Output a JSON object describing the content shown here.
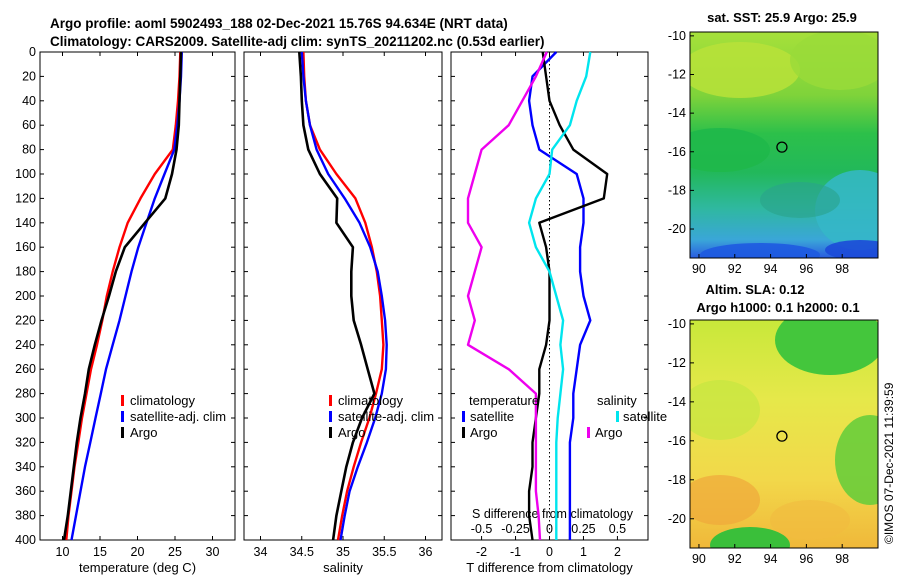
{
  "title": {
    "line1": "Argo profile: aoml 5902493_188 02-Dec-2021 15.76S 94.634E (NRT data)",
    "line2": "Climatology: CARS2009. Satellite-adj clim: synTS_20211202.nc (0.53d earlier)"
  },
  "colors": {
    "climatology": "#ff0000",
    "satellite": "#0000ff",
    "argo": "#000000",
    "salinity_diff": "#00e5ee",
    "salinity_argo_diff": "#ee00ee"
  },
  "depth_ticks": [
    0,
    20,
    40,
    60,
    80,
    100,
    120,
    140,
    160,
    180,
    200,
    220,
    240,
    260,
    280,
    300,
    320,
    340,
    360,
    380,
    400
  ],
  "chart_data": [
    {
      "type": "line",
      "panel": "temperature",
      "xlabel": "temperature (deg C)",
      "ylabel": "depth",
      "xlim": [
        7,
        33
      ],
      "ylim": [
        400,
        0
      ],
      "xticks": [
        10,
        15,
        20,
        25,
        30
      ],
      "legend": [
        "climatology",
        "satellite-adj. clim",
        "Argo"
      ],
      "depth": [
        0,
        20,
        40,
        60,
        80,
        100,
        120,
        140,
        160,
        180,
        200,
        220,
        240,
        260,
        280,
        300,
        320,
        340,
        360,
        380,
        400
      ],
      "series": [
        {
          "name": "climatology",
          "values": [
            25.7,
            25.6,
            25.4,
            25.1,
            24.7,
            22.3,
            20.4,
            18.7,
            17.6,
            16.7,
            15.9,
            15.3,
            14.6,
            13.8,
            13.2,
            12.6,
            12.1,
            11.6,
            11.2,
            10.8,
            10.5
          ]
        },
        {
          "name": "satellite-adj. clim",
          "values": [
            25.9,
            25.8,
            25.6,
            25.3,
            24.9,
            23.6,
            22.3,
            21.2,
            20.1,
            19.2,
            18.4,
            17.6,
            16.7,
            15.8,
            15.1,
            14.4,
            13.7,
            13.0,
            12.4,
            11.8,
            11.2
          ]
        },
        {
          "name": "Argo",
          "values": [
            25.8,
            25.7,
            25.6,
            25.5,
            25.2,
            24.6,
            23.7,
            21.0,
            18.3,
            17.1,
            16.2,
            15.2,
            14.3,
            13.5,
            13.0,
            12.4,
            11.9,
            11.5,
            11.1,
            10.7,
            10.2
          ]
        }
      ]
    },
    {
      "type": "line",
      "panel": "salinity",
      "xlabel": "salinity",
      "ylabel": "depth",
      "xlim": [
        33.8,
        36.2
      ],
      "ylim": [
        400,
        0
      ],
      "xticks": [
        34,
        34.5,
        35,
        35.5,
        36
      ],
      "xtick_labels": [
        "34",
        "34.5",
        "35",
        "35.5",
        "36"
      ],
      "legend": [
        "climatology",
        "satellite-adj. clim",
        "Argo"
      ],
      "depth": [
        0,
        20,
        40,
        60,
        80,
        100,
        120,
        140,
        160,
        180,
        200,
        220,
        240,
        260,
        280,
        300,
        320,
        340,
        360,
        380,
        400
      ],
      "series": [
        {
          "name": "climatology",
          "values": [
            34.52,
            34.53,
            34.55,
            34.6,
            34.72,
            34.92,
            35.15,
            35.27,
            35.35,
            35.41,
            35.45,
            35.47,
            35.49,
            35.47,
            35.4,
            35.32,
            35.22,
            35.13,
            35.05,
            34.99,
            34.94
          ]
        },
        {
          "name": "satellite-adj. clim",
          "values": [
            34.5,
            34.52,
            34.55,
            34.6,
            34.68,
            34.82,
            35.02,
            35.2,
            35.33,
            35.42,
            35.47,
            35.51,
            35.53,
            35.52,
            35.47,
            35.39,
            35.29,
            35.18,
            35.08,
            35.02,
            34.97
          ]
        },
        {
          "name": "Argo",
          "values": [
            34.47,
            34.49,
            34.5,
            34.52,
            34.58,
            34.72,
            34.93,
            34.92,
            35.12,
            35.1,
            35.1,
            35.13,
            35.22,
            35.3,
            35.38,
            35.23,
            35.12,
            35.04,
            34.98,
            34.92,
            34.88
          ]
        }
      ]
    },
    {
      "type": "line",
      "panel": "differences",
      "xlabel": "T difference from climatology",
      "xlabel_top": "S difference from climatology",
      "ylabel": "depth",
      "xlim": [
        -2.9,
        2.9
      ],
      "ylim": [
        400,
        0
      ],
      "xticks": [
        -2,
        -1,
        0,
        1,
        2
      ],
      "xtick_labels": [
        "-2",
        "-1",
        "0",
        "1",
        "2"
      ],
      "s_ticks": [
        -0.5,
        -0.25,
        0,
        0.25,
        0.5
      ],
      "s_tick_labels": [
        "-0.5",
        "-0.25",
        "0",
        "0.25",
        "0.5"
      ],
      "s_range": [
        -0.725,
        0.725
      ],
      "legend": {
        "temperature_title": "temperature",
        "salinity_title": "salinity",
        "t_sat": "satellite",
        "t_argo": "Argo",
        "s_sat": "satellite",
        "s_argo": "Argo"
      },
      "depth": [
        0,
        20,
        40,
        60,
        80,
        100,
        120,
        140,
        160,
        180,
        200,
        220,
        240,
        260,
        280,
        300,
        320,
        340,
        360,
        380,
        400
      ],
      "series": [
        {
          "name": "temperature satellite",
          "values": [
            0.2,
            -0.5,
            -0.6,
            -0.5,
            -0.3,
            0.8,
            1.0,
            1.0,
            0.9,
            0.9,
            1.0,
            1.2,
            0.9,
            0.8,
            0.7,
            0.7,
            0.6,
            0.6,
            0.6,
            0.6,
            0.6
          ]
        },
        {
          "name": "temperature Argo",
          "values": [
            -0.2,
            -0.1,
            0.0,
            0.3,
            0.7,
            1.7,
            1.6,
            -0.3,
            -0.1,
            0.0,
            0.0,
            0.0,
            -0.1,
            -0.3,
            -0.3,
            -0.4,
            -0.5,
            -0.5,
            -0.6,
            -0.6,
            -0.5
          ]
        },
        {
          "name": "salinity satellite",
          "values": [
            0.3,
            0.27,
            0.2,
            0.15,
            0.02,
            0.0,
            -0.1,
            -0.15,
            -0.1,
            0.0,
            0.05,
            0.1,
            0.08,
            0.1,
            0.08,
            0.06,
            0.05,
            0.05,
            0.05,
            0.05,
            0.05
          ]
        },
        {
          "name": "salinity Argo",
          "values": [
            -0.02,
            -0.1,
            -0.2,
            -0.3,
            -0.5,
            -0.55,
            -0.6,
            -0.6,
            -0.5,
            -0.55,
            -0.6,
            -0.55,
            -0.6,
            -0.3,
            -0.1,
            -0.1,
            -0.1,
            -0.1,
            -0.1,
            -0.08,
            -0.07
          ]
        }
      ]
    }
  ],
  "maps": {
    "sst": {
      "title": "sat. SST: 25.9 Argo: 25.9",
      "yticks": [
        "-10",
        "-12",
        "-14",
        "-16",
        "-18",
        "-20"
      ],
      "xticks": [
        "90",
        "92",
        "94",
        "96",
        "98"
      ],
      "lon_range": [
        89.5,
        100.0
      ],
      "lat_range": [
        -21.5,
        -9.8
      ],
      "marker": [
        94.634,
        -15.76
      ]
    },
    "sla": {
      "title_line1": "Altim. SLA: 0.12",
      "title_line2": "Argo h1000: 0.1 h2000: 0.1",
      "yticks": [
        "-10",
        "-12",
        "-14",
        "-16",
        "-18",
        "-20"
      ],
      "xticks": [
        "90",
        "92",
        "94",
        "96",
        "98"
      ],
      "lon_range": [
        89.5,
        100.0
      ],
      "lat_range": [
        -21.5,
        -9.8
      ],
      "marker": [
        94.634,
        -15.76
      ]
    }
  },
  "credit": "©IMOS 07-Dec-2021 11:39:59"
}
